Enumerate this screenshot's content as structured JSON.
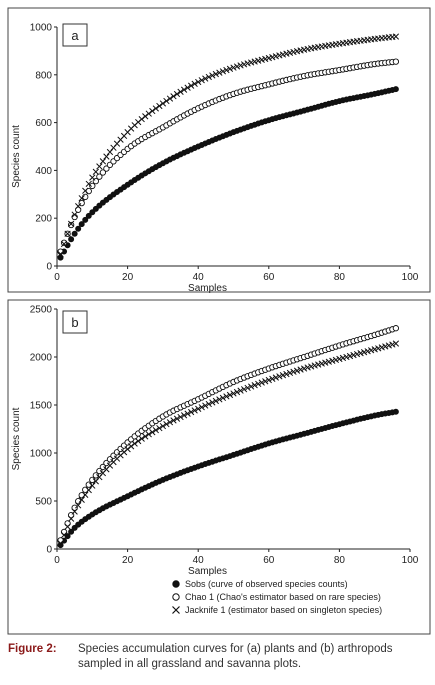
{
  "chart_data": [
    {
      "type": "line",
      "panel_label": "a",
      "xlabel": "Samples",
      "ylabel": "Species count",
      "xlim": [
        0,
        100
      ],
      "ylim": [
        0,
        1000
      ],
      "x_ticks": [
        "0",
        "20",
        "40",
        "60",
        "80",
        "100"
      ],
      "y_ticks": [
        "0",
        "200",
        "400",
        "600",
        "800",
        "1000"
      ],
      "y_tick_values": [
        0,
        200,
        400,
        600,
        800,
        1000
      ],
      "grid": false,
      "series": [
        {
          "key": "sobs",
          "marker": "filled-circle",
          "x": [
            1,
            5,
            10,
            20,
            30,
            40,
            50,
            60,
            70,
            80,
            90,
            96
          ],
          "y": [
            35,
            135,
            225,
            340,
            430,
            500,
            560,
            610,
            650,
            690,
            720,
            740
          ]
        },
        {
          "key": "chao1",
          "marker": "open-circle",
          "x": [
            1,
            5,
            10,
            20,
            30,
            40,
            50,
            60,
            70,
            80,
            90,
            96
          ],
          "y": [
            60,
            205,
            335,
            490,
            580,
            660,
            720,
            760,
            795,
            820,
            845,
            855
          ]
        },
        {
          "key": "jack1",
          "marker": "cross",
          "x": [
            1,
            5,
            10,
            20,
            30,
            40,
            50,
            60,
            70,
            80,
            90,
            96
          ],
          "y": [
            50,
            215,
            370,
            560,
            680,
            770,
            830,
            870,
            905,
            930,
            950,
            960
          ]
        }
      ]
    },
    {
      "type": "line",
      "panel_label": "b",
      "xlabel": "Samples",
      "ylabel": "Species count",
      "xlim": [
        0,
        100
      ],
      "ylim": [
        0,
        2500
      ],
      "x_ticks": [
        "0",
        "20",
        "40",
        "60",
        "80",
        "100"
      ],
      "y_ticks": [
        "0",
        "500",
        "1000",
        "1500",
        "2000",
        "2500"
      ],
      "y_tick_values": [
        0,
        500,
        1000,
        1500,
        2000,
        2500
      ],
      "grid": false,
      "series": [
        {
          "key": "sobs",
          "marker": "filled-circle",
          "x": [
            1,
            5,
            10,
            20,
            30,
            40,
            50,
            60,
            70,
            80,
            90,
            96
          ],
          "y": [
            40,
            220,
            360,
            550,
            720,
            860,
            980,
            1100,
            1200,
            1300,
            1390,
            1430
          ]
        },
        {
          "key": "chao1",
          "marker": "open-circle",
          "x": [
            1,
            5,
            10,
            20,
            30,
            40,
            50,
            60,
            70,
            80,
            90,
            96
          ],
          "y": [
            90,
            430,
            720,
            1110,
            1380,
            1560,
            1740,
            1880,
            2000,
            2120,
            2230,
            2300
          ]
        },
        {
          "key": "jack1",
          "marker": "cross",
          "x": [
            1,
            5,
            10,
            20,
            30,
            40,
            50,
            60,
            70,
            80,
            90,
            96
          ],
          "y": [
            60,
            390,
            660,
            1040,
            1280,
            1460,
            1620,
            1760,
            1880,
            1980,
            2080,
            2140
          ]
        }
      ]
    }
  ],
  "legend": {
    "placement": "bottom-right",
    "items": [
      {
        "key": "sobs",
        "marker": "filled-circle",
        "label": "Sobs (curve of observed species counts)"
      },
      {
        "key": "chao1",
        "marker": "open-circle",
        "label": "Chao 1 (Chao's estimator based on rare species)"
      },
      {
        "key": "jack1",
        "marker": "cross",
        "label": "Jacknife 1 (estimator based on singleton species)"
      }
    ]
  },
  "caption": {
    "label": "Figure 2:",
    "text": "Species accumulation curves for (a) plants and (b) arthropods sampled in all grassland and savanna plots."
  }
}
